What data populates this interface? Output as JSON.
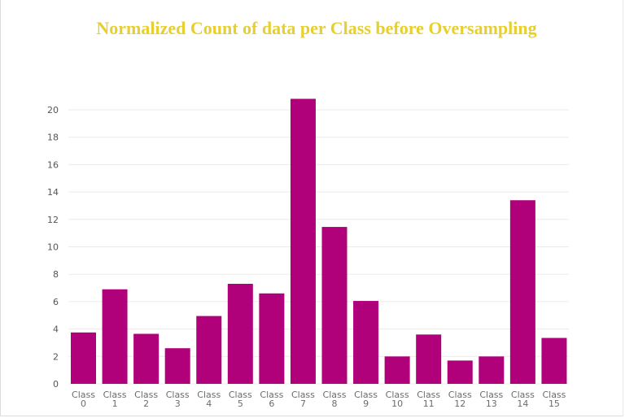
{
  "chart_data": {
    "type": "bar",
    "title": "Normalized Count of data per Class before Oversampling",
    "xlabel": "",
    "ylabel": "",
    "categories": [
      "Class 0",
      "Class 1",
      "Class 2",
      "Class 3",
      "Class 4",
      "Class 5",
      "Class 6",
      "Class 7",
      "Class 8",
      "Class 9",
      "Class 10",
      "Class 11",
      "Class 12",
      "Class 13",
      "Class 14",
      "Class 15"
    ],
    "values": [
      3.75,
      6.9,
      3.65,
      2.6,
      4.95,
      7.3,
      6.6,
      20.8,
      11.45,
      6.05,
      2.0,
      3.6,
      1.7,
      2.0,
      13.4,
      3.35
    ],
    "ylim": [
      0,
      20
    ],
    "yticks": [
      0,
      2,
      4,
      6,
      8,
      10,
      12,
      14,
      16,
      18,
      20
    ],
    "grid": true,
    "legend": "none",
    "colors": {
      "bar": "#b0007a",
      "title": "#e6cf2e",
      "grid": "#ebebeb"
    }
  }
}
